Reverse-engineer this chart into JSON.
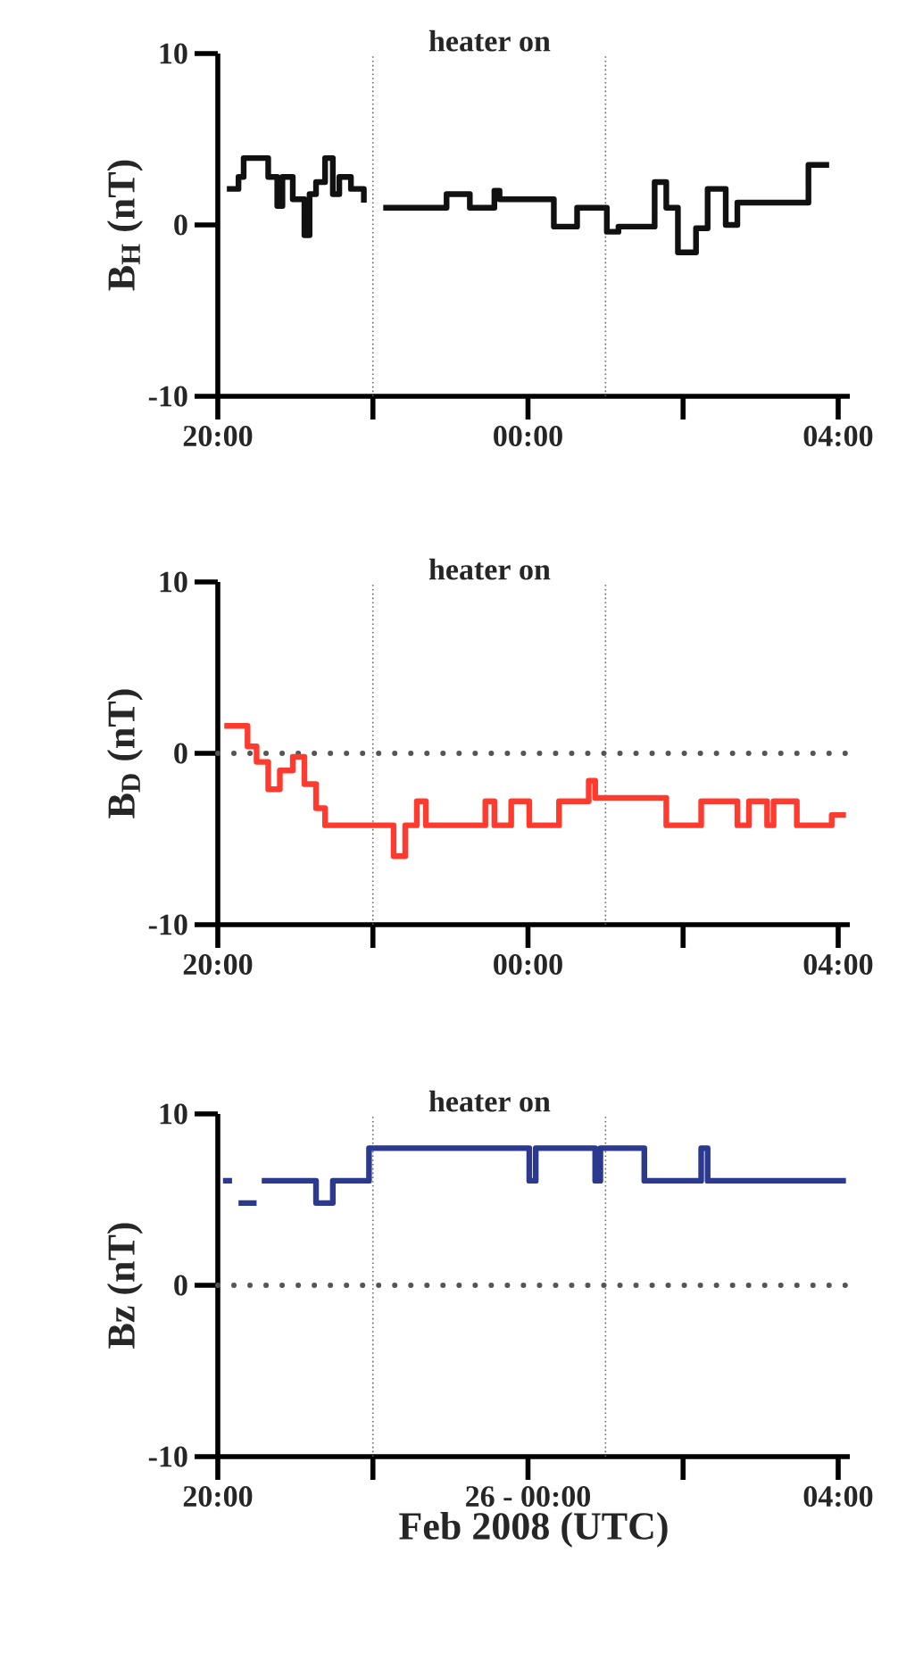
{
  "chart_data": [
    {
      "type": "step",
      "ylabel": "B$_{H}$ (nT)",
      "annotations": [
        "heater on"
      ],
      "xlim": [
        "2008-02-25T20:00",
        "2008-02-26T04:09"
      ],
      "ylim": [
        -10,
        10
      ],
      "xticks": [
        {
          "value": "2008-02-25T20:00",
          "label": "20:00"
        },
        {
          "value": "2008-02-25T22:00",
          "label": null
        },
        {
          "value": "2008-02-26T00:00",
          "label": "00:00"
        },
        {
          "value": "2008-02-26T02:00",
          "label": null
        },
        {
          "value": "2008-02-26T04:00",
          "label": "04:00"
        }
      ],
      "yticks": [
        -10,
        0,
        10
      ],
      "ref_lines": [
        {
          "axis": "x",
          "value": "2008-02-25T22:00",
          "color": "#666666",
          "line_style": "dotted"
        },
        {
          "axis": "x",
          "value": "2008-02-26T01:00",
          "color": "#666666",
          "line_style": "dotted"
        }
      ],
      "series": [
        {
          "color": "#111111",
          "x": [
            "2008-02-25T20:07",
            "2008-02-25T20:16",
            "2008-02-25T20:20",
            "2008-02-25T20:39",
            "2008-02-25T20:46",
            "2008-02-25T20:50",
            "2008-02-25T20:58",
            "2008-02-25T21:07",
            "2008-02-25T21:11",
            "2008-02-25T21:16",
            "2008-02-25T21:23",
            "2008-02-25T21:29",
            "2008-02-25T21:34",
            "2008-02-25T21:43",
            "2008-02-25T21:53",
            "2008-02-25T22:00",
            "2008-02-25T22:08",
            "2008-02-25T22:57",
            "2008-02-25T23:15",
            "2008-02-25T23:34",
            "2008-02-25T23:38",
            "2008-02-25T23:47",
            "2008-02-26T00:20",
            "2008-02-26T00:24",
            "2008-02-26T00:38",
            "2008-02-26T00:52",
            "2008-02-26T01:01",
            "2008-02-26T01:10",
            "2008-02-26T01:38",
            "2008-02-26T01:47",
            "2008-02-26T01:56",
            "2008-02-26T02:10",
            "2008-02-26T02:19",
            "2008-02-26T02:33",
            "2008-02-26T02:42",
            "2008-02-26T02:51",
            "2008-02-26T03:37",
            "2008-02-26T03:44",
            "2008-02-26T03:53"
          ],
          "values": [
            2.1,
            2.8,
            3.9,
            2.8,
            1.1,
            2.8,
            1.5,
            -0.6,
            1.8,
            2.5,
            3.9,
            1.8,
            2.8,
            2.1,
            1.3,
            null,
            1.0,
            1.8,
            1.0,
            2.0,
            1.5,
            1.5,
            -0.1,
            -0.1,
            1.0,
            1.0,
            -0.4,
            -0.1,
            2.5,
            1.0,
            -1.6,
            -0.2,
            2.1,
            0.0,
            1.3,
            1.3,
            3.5,
            3.5,
            3.5
          ]
        }
      ]
    },
    {
      "type": "step",
      "ylabel": "B$_{D}$ (nT)",
      "annotations": [
        "heater on"
      ],
      "xlim": [
        "2008-02-25T20:00",
        "2008-02-26T04:09"
      ],
      "ylim": [
        -10,
        10
      ],
      "xticks": [
        {
          "value": "2008-02-25T20:00",
          "label": "20:00"
        },
        {
          "value": "2008-02-25T22:00",
          "label": null
        },
        {
          "value": "2008-02-26T00:00",
          "label": "00:00"
        },
        {
          "value": "2008-02-26T02:00",
          "label": null
        },
        {
          "value": "2008-02-26T04:00",
          "label": "04:00"
        }
      ],
      "yticks": [
        -10,
        0,
        10
      ],
      "ref_lines": [
        {
          "axis": "x",
          "value": "2008-02-25T22:00",
          "color": "#666666",
          "line_style": "dotted"
        },
        {
          "axis": "x",
          "value": "2008-02-26T01:00",
          "color": "#666666",
          "line_style": "dotted"
        },
        {
          "axis": "y",
          "value": 0,
          "color": "#555555",
          "line_style": "dotted"
        }
      ],
      "series": [
        {
          "color": "#ff3b2f",
          "x": [
            "2008-02-25T20:05",
            "2008-02-25T20:23",
            "2008-02-25T20:30",
            "2008-02-25T20:39",
            "2008-02-25T20:48",
            "2008-02-25T20:58",
            "2008-02-25T21:07",
            "2008-02-25T21:16",
            "2008-02-25T21:23",
            "2008-02-25T22:16",
            "2008-02-25T22:25",
            "2008-02-25T22:34",
            "2008-02-25T22:41",
            "2008-02-25T23:27",
            "2008-02-25T23:34",
            "2008-02-25T23:47",
            "2008-02-26T00:01",
            "2008-02-26T00:24",
            "2008-02-26T00:47",
            "2008-02-26T00:52",
            "2008-02-26T01:47",
            "2008-02-26T02:14",
            "2008-02-26T02:42",
            "2008-02-26T02:51",
            "2008-02-26T03:05",
            "2008-02-26T03:10",
            "2008-02-26T03:28",
            "2008-02-26T03:55",
            "2008-02-26T04:06"
          ],
          "values": [
            1.6,
            0.4,
            -0.5,
            -2.1,
            -1.0,
            -0.2,
            -1.8,
            -3.2,
            -4.2,
            -6.0,
            -4.2,
            -2.8,
            -4.2,
            -2.8,
            -4.2,
            -2.8,
            -4.2,
            -2.8,
            -1.6,
            -2.6,
            -4.2,
            -2.8,
            -4.2,
            -2.8,
            -4.2,
            -2.8,
            -4.2,
            -3.6,
            -3.6
          ]
        }
      ]
    },
    {
      "type": "step",
      "ylabel": "Bz (nT)",
      "xlabel": "Feb 2008 (UTC)",
      "annotations": [
        "heater on"
      ],
      "xlim": [
        "2008-02-25T20:00",
        "2008-02-26T04:09"
      ],
      "ylim": [
        -10,
        10
      ],
      "xticks": [
        {
          "value": "2008-02-25T20:00",
          "label": "20:00"
        },
        {
          "value": "2008-02-25T22:00",
          "label": null
        },
        {
          "value": "2008-02-26T00:00",
          "label": "26 - 00:00"
        },
        {
          "value": "2008-02-26T02:00",
          "label": null
        },
        {
          "value": "2008-02-26T04:00",
          "label": "04:00"
        }
      ],
      "yticks": [
        -10,
        0,
        10
      ],
      "ref_lines": [
        {
          "axis": "x",
          "value": "2008-02-25T22:00",
          "color": "#666666",
          "line_style": "dotted"
        },
        {
          "axis": "x",
          "value": "2008-02-26T01:00",
          "color": "#666666",
          "line_style": "dotted"
        },
        {
          "axis": "y",
          "value": 0,
          "color": "#555555",
          "line_style": "dotted"
        }
      ],
      "series": [
        {
          "color": "#2b3a8f",
          "x": [
            "2008-02-25T20:04",
            "2008-02-25T20:11",
            "2008-02-25T20:13",
            "2008-02-25T20:16",
            "2008-02-25T20:30",
            "2008-02-25T20:32",
            "2008-02-25T20:34",
            "2008-02-25T21:16",
            "2008-02-25T21:29",
            "2008-02-25T21:57",
            "2008-02-26T00:01",
            "2008-02-26T00:06",
            "2008-02-26T00:52",
            "2008-02-26T00:56",
            "2008-02-26T01:30",
            "2008-02-26T02:14",
            "2008-02-26T02:19",
            "2008-02-26T04:06"
          ],
          "values": [
            6.1,
            6.1,
            null,
            4.8,
            4.8,
            null,
            6.1,
            4.8,
            6.1,
            8.0,
            6.1,
            8.0,
            6.1,
            8.0,
            6.1,
            8.0,
            6.1,
            6.1
          ]
        }
      ]
    }
  ]
}
